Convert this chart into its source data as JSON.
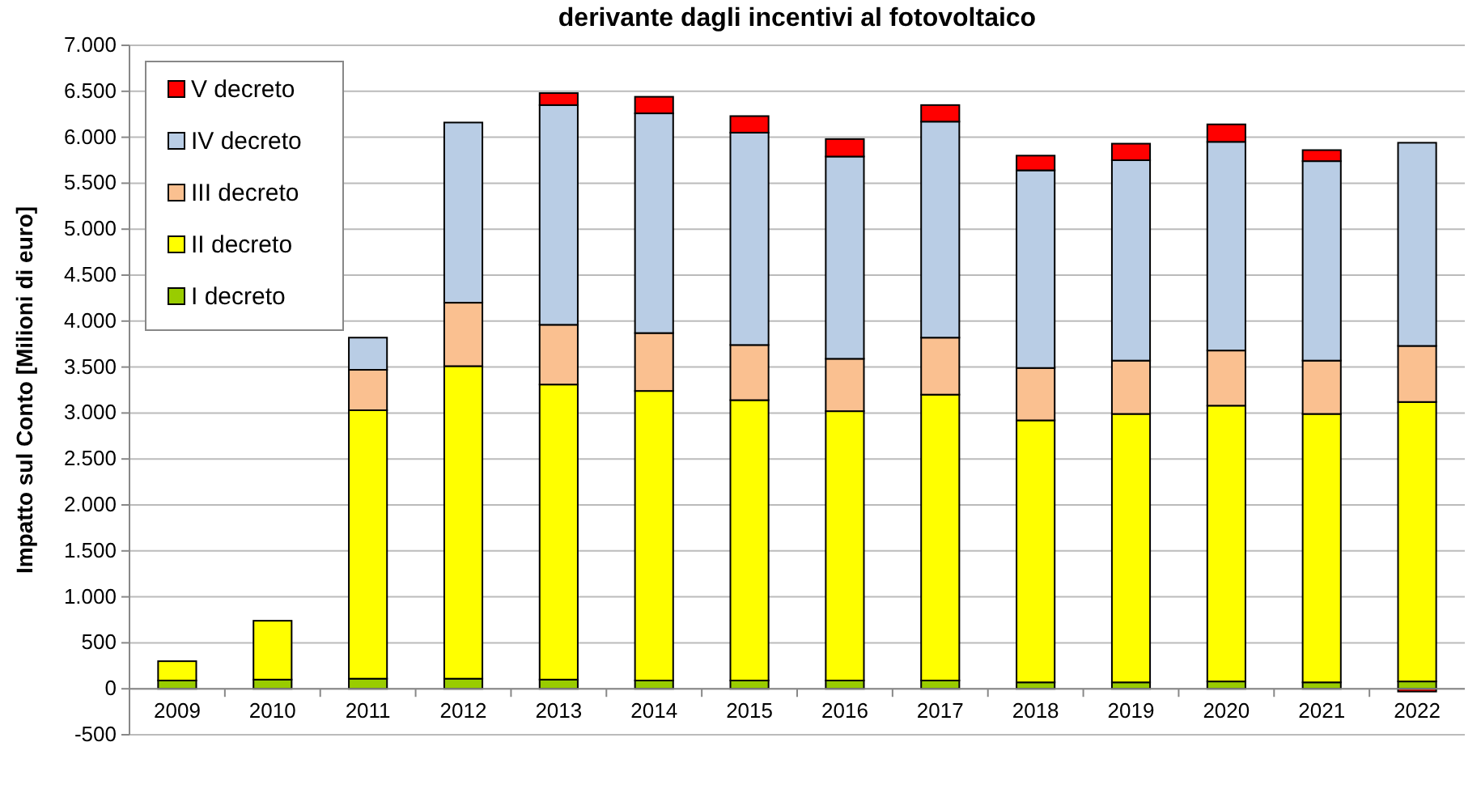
{
  "chart_data": {
    "type": "bar",
    "stacked": true,
    "title": "derivante dagli incentivi al fotovoltaico",
    "ylabel": "Impatto sul Conto [Milioni di euro]",
    "categories": [
      "2009",
      "2010",
      "2011",
      "2012",
      "2013",
      "2014",
      "2015",
      "2016",
      "2017",
      "2018",
      "2019",
      "2020",
      "2021",
      "2022"
    ],
    "series": [
      {
        "name": "I decreto",
        "color": "#99cc00",
        "values": [
          90,
          100,
          110,
          110,
          100,
          90,
          90,
          90,
          90,
          70,
          70,
          80,
          70,
          80
        ]
      },
      {
        "name": "II decreto",
        "color": "#ffff00",
        "values": [
          210,
          640,
          2920,
          3400,
          3210,
          3150,
          3050,
          2930,
          3110,
          2850,
          2920,
          3000,
          2920,
          3040
        ]
      },
      {
        "name": "III decreto",
        "color": "#fac090",
        "values": [
          null,
          null,
          440,
          690,
          650,
          630,
          600,
          570,
          620,
          570,
          580,
          600,
          580,
          610
        ]
      },
      {
        "name": "IV decreto",
        "color": "#b9cde5",
        "values": [
          null,
          null,
          350,
          1960,
          2390,
          2390,
          2310,
          2200,
          2350,
          2150,
          2180,
          2270,
          2170,
          2210
        ]
      },
      {
        "name": "V decreto",
        "color": "#ff0000",
        "values": [
          null,
          null,
          null,
          null,
          130,
          180,
          180,
          190,
          180,
          160,
          180,
          190,
          120,
          -30
        ]
      }
    ],
    "ylim": [
      -500,
      7000
    ],
    "yticks": [
      -500,
      0,
      500,
      {
        "value": 1000,
        "label": "1.000"
      },
      {
        "value": 1500,
        "label": "1.500"
      },
      {
        "value": 2000,
        "label": "2.000"
      },
      {
        "value": 2500,
        "label": "2.500"
      },
      {
        "value": 3000,
        "label": "3.000"
      },
      {
        "value": 3500,
        "label": "3.500"
      },
      {
        "value": 4000,
        "label": "4.000"
      },
      {
        "value": 4500,
        "label": "4.500"
      },
      {
        "value": 5000,
        "label": "5.000"
      },
      {
        "value": 5500,
        "label": "5.500"
      },
      {
        "value": 6000,
        "label": "6.000"
      },
      {
        "value": 6500,
        "label": "6.500"
      },
      {
        "value": 7000,
        "label": "7.000"
      }
    ],
    "grid": "y",
    "legend": "top left"
  }
}
